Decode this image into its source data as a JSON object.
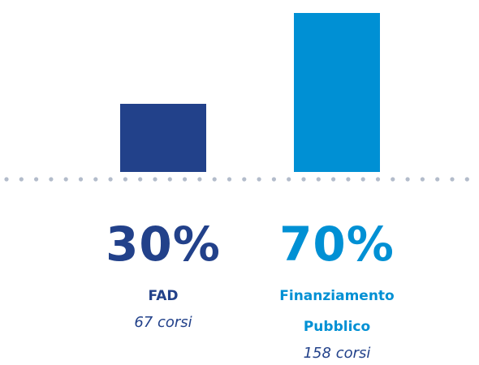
{
  "chart_data": {
    "type": "bar",
    "categories": [
      "FAD",
      "Finanziamento Pubblico"
    ],
    "values": [
      30,
      70
    ],
    "value_labels": [
      "30%",
      "70%"
    ],
    "sublabels": [
      "67 corsi",
      "158 corsi"
    ],
    "colors": [
      "#22418a",
      "#0090d4"
    ]
  }
}
